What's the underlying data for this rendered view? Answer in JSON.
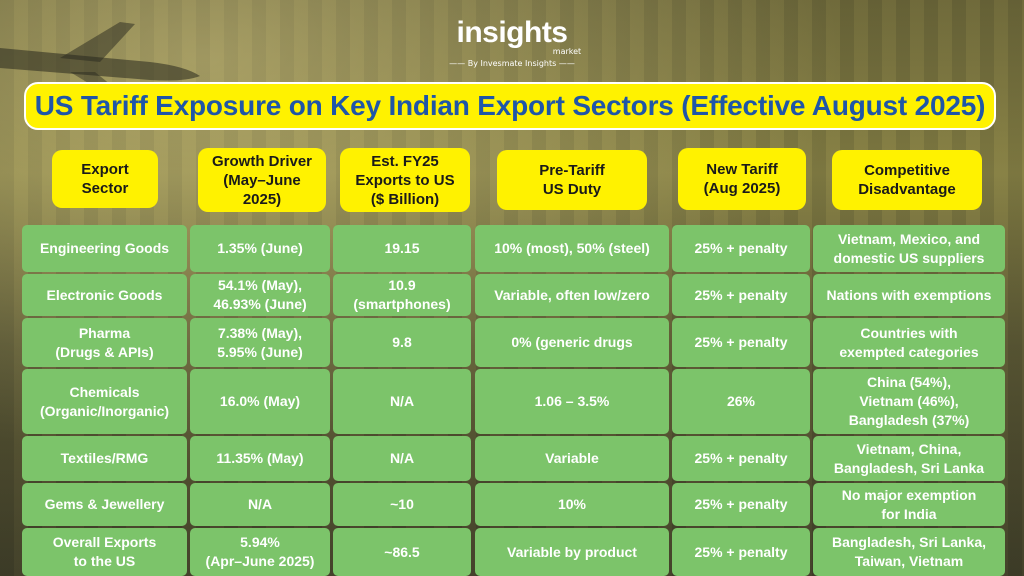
{
  "brand": {
    "name": "insights",
    "sub": "market",
    "tagline": "—— By Invesmate Insights ——"
  },
  "title": "US Tariff Exposure on Key Indian Export Sectors (Effective August 2025)",
  "columns": [
    "Export\nSector",
    "Growth Driver\n(May–June\n2025)",
    "Est. FY25\nExports to US\n($ Billion)",
    "Pre-Tariff\nUS Duty",
    "New Tariff\n(Aug 2025)",
    "Competitive\nDisadvantage"
  ],
  "rows": [
    [
      "Engineering Goods",
      "1.35% (June)",
      "19.15",
      "10% (most), 50% (steel)",
      "25% + penalty",
      "Vietnam, Mexico, and\ndomestic US suppliers"
    ],
    [
      "Electronic Goods",
      "54.1% (May),\n46.93% (June)",
      "10.9\n(smartphones)",
      "Variable, often low/zero",
      "25% + penalty",
      "Nations with exemptions"
    ],
    [
      "Pharma\n(Drugs & APIs)",
      "7.38% (May),\n5.95% (June)",
      "9.8",
      "0% (generic drugs",
      "25% + penalty",
      "Countries with\nexempted categories"
    ],
    [
      "Chemicals\n(Organic/Inorganic)",
      "16.0% (May)",
      "N/A",
      "1.06 – 3.5%",
      "26%",
      "China (54%),\nVietnam (46%),\nBangladesh (37%)"
    ],
    [
      "Textiles/RMG",
      "11.35% (May)",
      "N/A",
      "Variable",
      "25% + penalty",
      "Vietnam, China,\nBangladesh, Sri Lanka"
    ],
    [
      "Gems & Jewellery",
      "N/A",
      "~10",
      "10%",
      "25% + penalty",
      "No major exemption\nfor India"
    ],
    [
      "Overall Exports\nto the US",
      "5.94%\n(Apr–June 2025)",
      "~86.5",
      "Variable by product",
      "25% + penalty",
      "Bangladesh, Sri Lanka,\nTaiwan, Vietnam"
    ]
  ]
}
